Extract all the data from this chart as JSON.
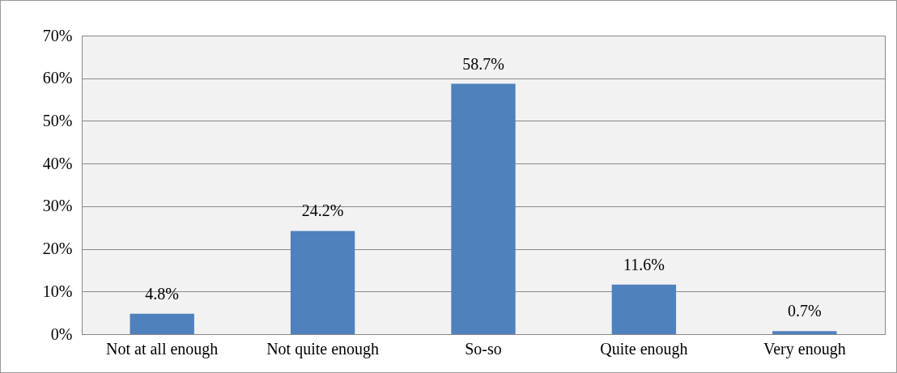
{
  "chart_data": {
    "type": "bar",
    "categories": [
      "Not at all enough",
      "Not quite enough",
      "So-so",
      "Quite enough",
      "Very enough"
    ],
    "values": [
      4.8,
      24.2,
      58.7,
      11.6,
      0.7
    ],
    "value_labels": [
      "4.8%",
      "24.2%",
      "58.7%",
      "11.6%",
      "0.7%"
    ],
    "color": "#4f81bd",
    "ylim": [
      0,
      70
    ],
    "yticks": [
      {
        "value": 0,
        "label": "0%"
      },
      {
        "value": 10,
        "label": "10%"
      },
      {
        "value": 20,
        "label": "20%"
      },
      {
        "value": 30,
        "label": "30%"
      },
      {
        "value": 40,
        "label": "40%"
      },
      {
        "value": 50,
        "label": "50%"
      },
      {
        "value": 60,
        "label": "60%"
      },
      {
        "value": 70,
        "label": "70%"
      }
    ],
    "grid": "y"
  }
}
